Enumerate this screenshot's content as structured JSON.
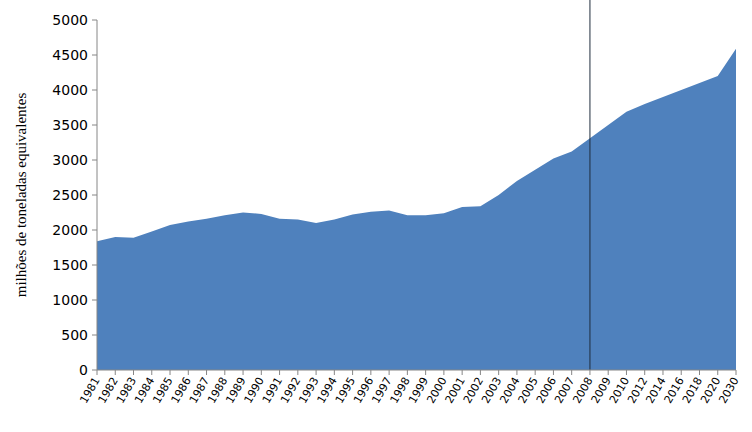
{
  "chart_data": {
    "type": "area",
    "y_label": "milhões de toneladas equivalentes",
    "categories": [
      "1981",
      "1982",
      "1983",
      "1984",
      "1985",
      "1986",
      "1987",
      "1988",
      "1989",
      "1990",
      "1991",
      "1992",
      "1993",
      "1994",
      "1995",
      "1996",
      "1997",
      "1998",
      "1999",
      "2000",
      "2001",
      "2002",
      "2003",
      "2004",
      "2005",
      "2006",
      "2007",
      "2008",
      "2009",
      "2010",
      "2012",
      "2014",
      "2016",
      "2018",
      "2020",
      "2030"
    ],
    "values": [
      1840,
      1900,
      1890,
      1980,
      2070,
      2120,
      2160,
      2210,
      2250,
      2230,
      2160,
      2150,
      2100,
      2150,
      2220,
      2260,
      2280,
      2210,
      2210,
      2240,
      2330,
      2340,
      2500,
      2700,
      2860,
      3020,
      3120,
      3310,
      3500,
      3690,
      3800,
      3900,
      4000,
      4100,
      4200,
      4590
    ],
    "color": "#4f81bd",
    "ylim": [
      0,
      5000
    ],
    "yticks": [
      0,
      500,
      1000,
      1500,
      2000,
      2500,
      3000,
      3500,
      4000,
      4500,
      5000
    ],
    "grid": false,
    "reference_line": "2008"
  }
}
